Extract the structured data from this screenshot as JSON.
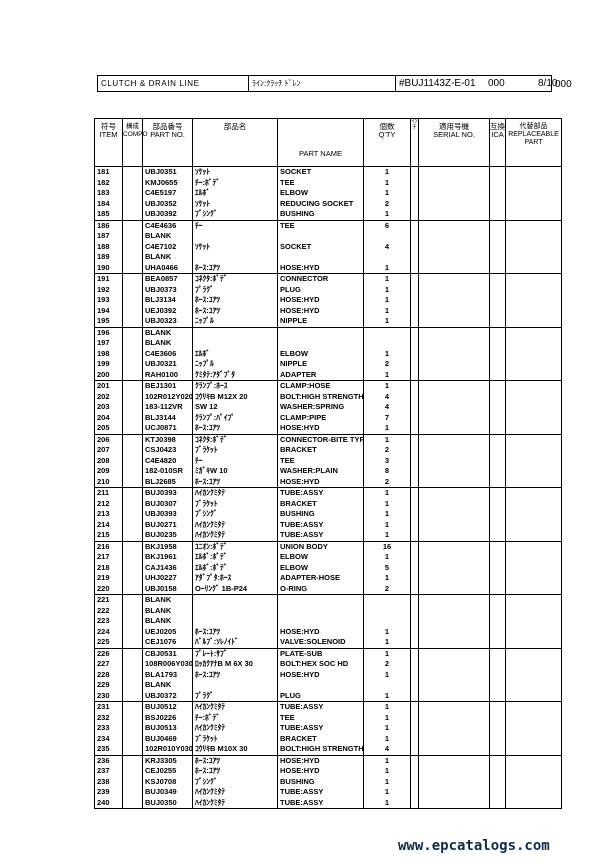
{
  "title": {
    "name_en": "CLUTCH & DRAIN LINE",
    "name_jp": "ﾗｲﾝ:ｸﾗｯﾁ ﾄﾞﾚﾝ",
    "code": "#BUJ1143Z-E-01",
    "rev": "000",
    "page": "8/10",
    "outside": "000"
  },
  "headers": {
    "item": [
      "符号",
      "ITEM"
    ],
    "compo": [
      "構成",
      "COMPO"
    ],
    "part_no": [
      "部品番号",
      "PART NO."
    ],
    "jp_name": "部品名",
    "part_name": "PART NAME",
    "qty": [
      "個数",
      "Q'TY"
    ],
    "inch": "ｲﾝﾁ",
    "serial": [
      "適用号機",
      "SERIAL NO."
    ],
    "ica": [
      "互換",
      "ICA"
    ],
    "replaceable": [
      "代替部品",
      "REPLACEABLE",
      "PART"
    ]
  },
  "rows": [
    [
      "181",
      "UBJ0351",
      "ｿｹｯﾄ",
      "SOCKET",
      "1"
    ],
    [
      "182",
      "KMJ0655",
      "ﾁｰ:ﾎﾞﾃﾞ",
      "TEE",
      "1"
    ],
    [
      "183",
      "C4E5197",
      "ｴﾙﾎﾞ",
      "ELBOW",
      "1"
    ],
    [
      "184",
      "UBJ0352",
      "ｿｹｯﾄ",
      "REDUCING SOCKET",
      "2"
    ],
    [
      "185",
      "UBJ0392",
      "ﾌﾞｼﾝｸﾞ",
      "BUSHING",
      "1"
    ],
    [
      "186",
      "C4E4636",
      "ﾁｰ",
      "TEE",
      "6"
    ],
    [
      "187",
      "BLANK",
      "",
      "",
      ""
    ],
    [
      "188",
      "C4E7102",
      "ｿｹｯﾄ",
      "SOCKET",
      "4"
    ],
    [
      "189",
      "BLANK",
      "",
      "",
      ""
    ],
    [
      "190",
      "UHA0466",
      "ﾎｰｽ:ﾕｱﾂ",
      "HOSE:HYD",
      "1"
    ],
    [
      "191",
      "BEA0857",
      "ｺﾈｸﾀ:ﾎﾞﾃﾞ",
      "CONNECTOR",
      "1"
    ],
    [
      "192",
      "UBJ0373",
      "ﾌﾟﾗｸﾞ",
      "PLUG",
      "1"
    ],
    [
      "193",
      "BLJ3134",
      "ﾎｰｽ:ﾕｱﾂ",
      "HOSE:HYD",
      "1"
    ],
    [
      "194",
      "UEJ0392",
      "ﾎｰｽ:ﾕｱﾂ",
      "HOSE:HYD",
      "1"
    ],
    [
      "195",
      "UBJ0323",
      "ﾆｯﾌﾟﾙ",
      "NIPPLE",
      "1"
    ],
    [
      "196",
      "BLANK",
      "",
      "",
      ""
    ],
    [
      "197",
      "BLANK",
      "",
      "",
      ""
    ],
    [
      "198",
      "C4E3606",
      "ｴﾙﾎﾞ",
      "ELBOW",
      "1"
    ],
    [
      "199",
      "UBJ0321",
      "ﾆｯﾌﾟﾙ",
      "NIPPLE",
      "2"
    ],
    [
      "200",
      "RAH0100",
      "ｸﾐﾀﾃ:ｱﾀﾞﾌﾟﾀ",
      "ADAPTER",
      "1"
    ],
    [
      "201",
      "BEJ1301",
      "ｸﾗﾝﾌﾟ:ﾎｰｽ",
      "CLAMP:HOSE",
      "1"
    ],
    [
      "202",
      "102R012Y020R",
      "ｺｳﾘｷB M12X 20",
      "BOLT:HIGH STRENGTH",
      "4"
    ],
    [
      "203",
      "183-112VR",
      "SW 12",
      "WASHER:SPRING",
      "4"
    ],
    [
      "204",
      "BLJ3144",
      "ｸﾗﾝﾌﾟ:ﾊﾟｲﾌﾟ",
      "CLAMP:PIPE",
      "7"
    ],
    [
      "205",
      "UCJ0871",
      "ﾎｰｽ:ﾕｱﾂ",
      "HOSE:HYD",
      "1"
    ],
    [
      "206",
      "KTJ0398",
      "ｺﾈｸﾀ:ﾎﾞﾃﾞ",
      "CONNECTOR-BITE TYPE",
      "1"
    ],
    [
      "207",
      "CSJ0423",
      "ﾌﾞﾗｹｯﾄ",
      "BRACKET",
      "2"
    ],
    [
      "208",
      "C4E4820",
      "ﾁｰ",
      "TEE",
      "3"
    ],
    [
      "209",
      "182-010SR",
      "ﾐｶﾞｷW 10",
      "WASHER:PLAIN",
      "8"
    ],
    [
      "210",
      "BLJ2685",
      "ﾎｰｽ:ﾕｱﾂ",
      "HOSE:HYD",
      "2"
    ],
    [
      "211",
      "BUJ0393",
      "ﾊｲｶﾝｸﾐﾀﾃ",
      "TUBE:ASSY",
      "1"
    ],
    [
      "212",
      "BUJ0307",
      "ﾌﾞﾗｹｯﾄ",
      "BRACKET",
      "1"
    ],
    [
      "213",
      "UBJ0393",
      "ﾌﾞｼﾝｸﾞ",
      "BUSHING",
      "1"
    ],
    [
      "214",
      "BUJ0271",
      "ﾊｲｶﾝｸﾐﾀﾃ",
      "TUBE:ASSY",
      "1"
    ],
    [
      "215",
      "BUJ0235",
      "ﾊｲｶﾝｸﾐﾀﾃ",
      "TUBE:ASSY",
      "1"
    ],
    [
      "216",
      "BKJ1958",
      "ﾕﾆｵﾝ:ﾎﾞﾃﾞ",
      "UNION BODY",
      "16"
    ],
    [
      "217",
      "BKJ1961",
      "ｴﾙﾎﾞ:ﾎﾞﾃﾞ",
      "ELBOW",
      "1"
    ],
    [
      "218",
      "CAJ1436",
      "ｴﾙﾎﾞ:ﾎﾞﾃﾞ",
      "ELBOW",
      "5"
    ],
    [
      "219",
      "UHJ0227",
      "ｱﾀﾞﾌﾟﾀ:ﾎｰｽ",
      "ADAPTER-HOSE",
      "1"
    ],
    [
      "220",
      "UBJ0158",
      "Oｰﾘﾝｸﾞ 1B-P24",
      "O-RING",
      "2"
    ],
    [
      "221",
      "BLANK",
      "",
      "",
      ""
    ],
    [
      "222",
      "BLANK",
      "",
      "",
      ""
    ],
    [
      "223",
      "BLANK",
      "",
      "",
      ""
    ],
    [
      "224",
      "UEJ0205",
      "ﾎｰｽ:ﾕｱﾂ",
      "HOSE:HYD",
      "1"
    ],
    [
      "225",
      "CEJ1076",
      "ﾊﾞﾙﾌﾞ:ｿﾚﾉｲﾄﾞ",
      "VALVE:SOLENOID",
      "1"
    ],
    [
      "226",
      "CBJ0531",
      "ﾌﾟﾚｰﾄ:ｻﾌﾞ",
      "PLATE-SUB",
      "1"
    ],
    [
      "227",
      "108R006Y030N",
      "ﾛｯｶｸｱﾅB M 6X 30",
      "BOLT:HEX SOC HD",
      "2"
    ],
    [
      "228",
      "BLA1793",
      "ﾎｰｽ:ﾕｱﾂ",
      "HOSE:HYD",
      "1"
    ],
    [
      "229",
      "BLANK",
      "",
      "",
      ""
    ],
    [
      "230",
      "UBJ0372",
      "ﾌﾟﾗｸﾞ",
      "PLUG",
      "1"
    ],
    [
      "231",
      "BUJ0512",
      "ﾊｲｶﾝｸﾐﾀﾃ",
      "TUBE:ASSY",
      "1"
    ],
    [
      "232",
      "BSJ0226",
      "ﾁｰ:ﾎﾞﾃﾞ",
      "TEE",
      "1"
    ],
    [
      "233",
      "BUJ0513",
      "ﾊｲｶﾝｸﾐﾀﾃ",
      "TUBE:ASSY",
      "1"
    ],
    [
      "234",
      "BUJ0469",
      "ﾌﾞﾗｹｯﾄ",
      "BRACKET",
      "1"
    ],
    [
      "235",
      "102R010Y030R",
      "ｺｳﾘｷB M10X 30",
      "BOLT:HIGH STRENGTH",
      "4"
    ],
    [
      "236",
      "KRJ3305",
      "ﾎｰｽ:ﾕｱﾂ",
      "HOSE:HYD",
      "1"
    ],
    [
      "237",
      "CEJ0255",
      "ﾎｰｽ:ﾕｱﾂ",
      "HOSE:HYD",
      "1"
    ],
    [
      "238",
      "KSJ0708",
      "ﾌﾞｼﾝｸﾞ",
      "BUSHING",
      "1"
    ],
    [
      "239",
      "BUJ0349",
      "ﾊｲｶﾝｸﾐﾀﾃ",
      "TUBE:ASSY",
      "1"
    ],
    [
      "240",
      "BUJ0350",
      "ﾊｲｶﾝｸﾐﾀﾃ",
      "TUBE:ASSY",
      "1"
    ]
  ],
  "watermark": "www.epcatalogs.com",
  "colors": {
    "watermark": "#0d2b4e"
  }
}
